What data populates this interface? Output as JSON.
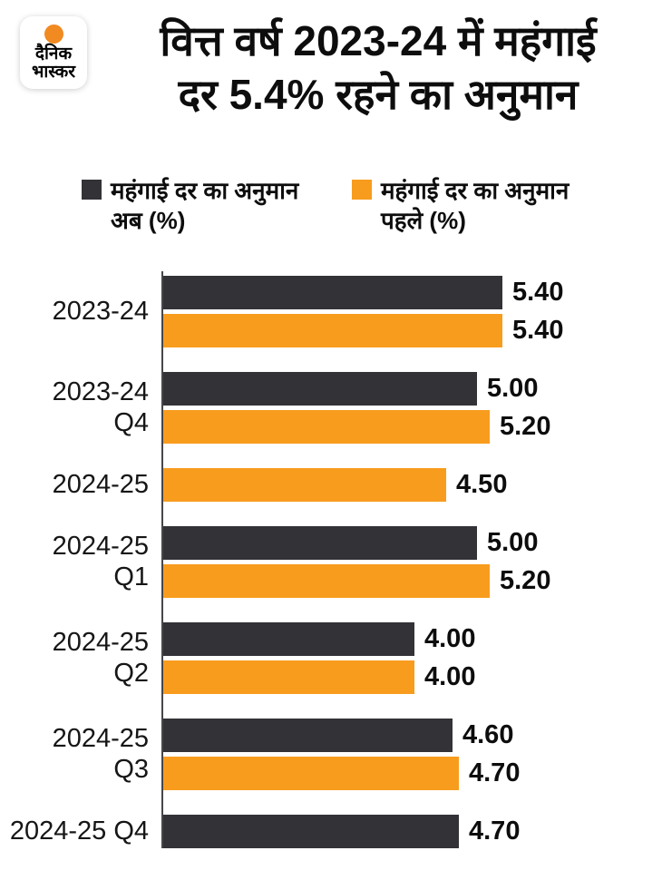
{
  "brand": {
    "logo_line1": "दैनिक",
    "logo_line2": "भास्कर",
    "logo_dot_color": "#F18A21"
  },
  "title": {
    "line1": "वित्त वर्ष 2023-24 में महंगाई",
    "line2": "दर 5.4% रहने का अनुमान"
  },
  "legend": {
    "items": [
      {
        "swatch_color": "#333237",
        "line1": "महंगाई दर का अनुमान",
        "line2": "अब (%)"
      },
      {
        "swatch_color": "#F89C1E",
        "line1": "महंगाई दर का अनुमान",
        "line2": "पहले (%)"
      }
    ]
  },
  "chart_data": {
    "type": "bar",
    "orientation": "horizontal",
    "title": "वित्त वर्ष 2023-24 में महंगाई दर 5.4% रहने का अनुमान",
    "categories": [
      "2023-24",
      "2023-24 Q4",
      "2024-25",
      "2024-25 Q1",
      "2024-25 Q2",
      "2024-25 Q3",
      "2024-25 Q4"
    ],
    "category_label_lines": [
      [
        "2023-24"
      ],
      [
        "2023-24",
        "Q4"
      ],
      [
        "2024-25"
      ],
      [
        "2024-25",
        "Q1"
      ],
      [
        "2024-25",
        "Q2"
      ],
      [
        "2024-25",
        "Q3"
      ],
      [
        "2024-25 Q4"
      ]
    ],
    "series": [
      {
        "name": "महंगाई दर का अनुमान अब (%)",
        "color": "#333237",
        "values": [
          5.4,
          5.0,
          null,
          5.0,
          4.0,
          4.6,
          4.7
        ],
        "labels": [
          "5.40",
          "5.00",
          null,
          "5.00",
          "4.00",
          "4.60",
          "4.70"
        ]
      },
      {
        "name": "महंगाई दर का अनुमान पहले (%)",
        "color": "#F89C1E",
        "values": [
          5.4,
          5.2,
          4.5,
          5.2,
          4.0,
          4.7,
          null
        ],
        "labels": [
          "5.40",
          "5.20",
          "4.50",
          "5.20",
          "4.00",
          "4.70",
          null
        ]
      }
    ],
    "xlim": [
      0,
      5.4
    ],
    "grid": false,
    "legend_position": "top",
    "axis_color": "#47464B"
  }
}
